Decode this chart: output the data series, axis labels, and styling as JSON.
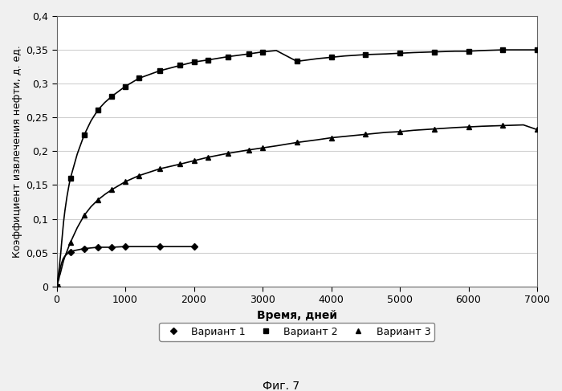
{
  "title": "",
  "xlabel": "Время, дней",
  "ylabel": "Коэффициент извлечения нефти, д. ед.",
  "caption": "Фиг. 7",
  "xlim": [
    0,
    7000
  ],
  "ylim": [
    0,
    0.4
  ],
  "yticks": [
    0,
    0.05,
    0.1,
    0.15,
    0.2,
    0.25,
    0.3,
    0.35,
    0.4
  ],
  "xticks": [
    0,
    1000,
    2000,
    3000,
    4000,
    5000,
    6000,
    7000
  ],
  "legend_labels": [
    "Вариант 1",
    "Вариант 2",
    "Вариант 3"
  ],
  "variant1_x": [
    0,
    5,
    10,
    15,
    20,
    30,
    40,
    50,
    60,
    70,
    80,
    90,
    100,
    120,
    150,
    180,
    200,
    250,
    300,
    350,
    400,
    500,
    600,
    700,
    800,
    1000,
    1200,
    1500,
    1800,
    2000
  ],
  "variant1_y": [
    0,
    0.002,
    0.004,
    0.007,
    0.01,
    0.015,
    0.02,
    0.025,
    0.03,
    0.034,
    0.037,
    0.04,
    0.042,
    0.045,
    0.048,
    0.05,
    0.051,
    0.053,
    0.054,
    0.055,
    0.056,
    0.057,
    0.058,
    0.058,
    0.058,
    0.059,
    0.059,
    0.059,
    0.059,
    0.059
  ],
  "variant1_markers_x": [
    0,
    200,
    400,
    600,
    800,
    1000,
    1500,
    2000
  ],
  "variant1_markers_y": [
    0,
    0.051,
    0.056,
    0.058,
    0.058,
    0.059,
    0.059,
    0.059
  ],
  "variant2_x": [
    0,
    5,
    10,
    15,
    20,
    30,
    40,
    50,
    60,
    70,
    80,
    90,
    100,
    120,
    150,
    180,
    200,
    250,
    300,
    350,
    400,
    500,
    600,
    700,
    800,
    1000,
    1200,
    1500,
    1800,
    2000,
    2200,
    2500,
    2800,
    3000,
    3200,
    3500,
    3800,
    4000,
    4200,
    4500,
    4800,
    5000,
    5200,
    5500,
    5800,
    6000,
    6200,
    6500,
    6800,
    7000
  ],
  "variant2_y": [
    0,
    0.003,
    0.006,
    0.01,
    0.014,
    0.022,
    0.03,
    0.04,
    0.05,
    0.062,
    0.073,
    0.084,
    0.095,
    0.112,
    0.133,
    0.15,
    0.16,
    0.178,
    0.196,
    0.21,
    0.224,
    0.245,
    0.261,
    0.272,
    0.281,
    0.296,
    0.308,
    0.319,
    0.327,
    0.332,
    0.335,
    0.34,
    0.344,
    0.347,
    0.349,
    0.333,
    0.337,
    0.339,
    0.341,
    0.343,
    0.344,
    0.345,
    0.346,
    0.347,
    0.348,
    0.348,
    0.349,
    0.35,
    0.35,
    0.35
  ],
  "variant2_markers_x": [
    0,
    200,
    400,
    600,
    800,
    1000,
    1200,
    1500,
    1800,
    2000,
    2200,
    2500,
    2800,
    3000,
    3500,
    4000,
    4500,
    5000,
    5500,
    6000,
    6500,
    7000
  ],
  "variant2_markers_y": [
    0,
    0.16,
    0.224,
    0.261,
    0.281,
    0.296,
    0.308,
    0.319,
    0.327,
    0.332,
    0.335,
    0.34,
    0.344,
    0.347,
    0.333,
    0.339,
    0.343,
    0.345,
    0.347,
    0.348,
    0.35,
    0.35
  ],
  "variant3_x": [
    0,
    5,
    10,
    15,
    20,
    30,
    40,
    50,
    60,
    70,
    80,
    90,
    100,
    120,
    150,
    180,
    200,
    250,
    300,
    350,
    400,
    500,
    600,
    700,
    800,
    1000,
    1200,
    1500,
    1800,
    2000,
    2200,
    2500,
    2800,
    3000,
    3200,
    3500,
    3800,
    4000,
    4200,
    4500,
    4800,
    5000,
    5200,
    5500,
    5800,
    6000,
    6200,
    6500,
    6800,
    7000
  ],
  "variant3_y": [
    0,
    0.001,
    0.003,
    0.005,
    0.007,
    0.01,
    0.015,
    0.018,
    0.022,
    0.026,
    0.03,
    0.034,
    0.038,
    0.044,
    0.052,
    0.06,
    0.065,
    0.076,
    0.087,
    0.096,
    0.105,
    0.118,
    0.128,
    0.136,
    0.143,
    0.155,
    0.164,
    0.174,
    0.181,
    0.186,
    0.191,
    0.197,
    0.202,
    0.205,
    0.208,
    0.213,
    0.217,
    0.22,
    0.222,
    0.225,
    0.228,
    0.229,
    0.231,
    0.233,
    0.235,
    0.236,
    0.237,
    0.238,
    0.239,
    0.232
  ],
  "variant3_markers_x": [
    0,
    200,
    400,
    600,
    800,
    1000,
    1200,
    1500,
    1800,
    2000,
    2200,
    2500,
    2800,
    3000,
    3500,
    4000,
    4500,
    5000,
    5500,
    6000,
    6500,
    7000
  ],
  "variant3_markers_y": [
    0,
    0.065,
    0.105,
    0.128,
    0.143,
    0.155,
    0.164,
    0.174,
    0.181,
    0.186,
    0.191,
    0.197,
    0.202,
    0.205,
    0.213,
    0.22,
    0.225,
    0.229,
    0.233,
    0.236,
    0.238,
    0.232
  ],
  "line_color": "#000000",
  "marker_v1": "D",
  "marker_v2": "s",
  "marker_v3": "^",
  "marker_size": 4,
  "linewidth": 1.2,
  "background_color": "#f0f0f0",
  "plot_bg_color": "#ffffff",
  "grid_color": "#d0d0d0"
}
